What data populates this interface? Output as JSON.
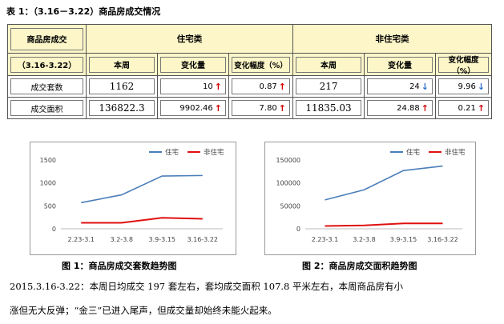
{
  "title": "表 1：（3.16－3.22）商品房成交情况",
  "table": {
    "corner_top": "商品房成交",
    "corner_bottom": "（3.16-3.22）",
    "group_residential": "住宅类",
    "group_nonresidential": "非住宅类",
    "col_week": "本周",
    "col_change": "变化量",
    "col_pct": "变化幅度（%）",
    "rows": [
      {
        "label": "成交套数",
        "res_week": "1162",
        "res_change": "10",
        "res_change_dir": "up",
        "res_pct": "0.87",
        "res_pct_dir": "up",
        "non_week": "217",
        "non_change": "24",
        "non_change_dir": "down",
        "non_pct": "9.96",
        "non_pct_dir": "down"
      },
      {
        "label": "成交面积",
        "res_week": "136822.3",
        "res_change": "9902.46",
        "res_change_dir": "up",
        "res_pct": "7.80",
        "res_pct_dir": "up",
        "non_week": "11835.03",
        "non_change": "24.88",
        "non_change_dir": "up",
        "non_pct": "0.21",
        "non_pct_dir": "up"
      }
    ]
  },
  "colors": {
    "residential": "#4a7ebb",
    "nonresidential": "#e01010",
    "arrow_up": "#d00000",
    "arrow_down": "#2a6fc9"
  },
  "captions": {
    "chart1": "图 1：商品房成交套数趋势图",
    "chart2": "图 2：商品房成交面积趋势图"
  },
  "paragraph": {
    "line1": "2015.3.16-3.22：本周日均成交 197 套左右，套均成交面积 107.8 平米左右，本周商品房有小",
    "line2": "涨但无大反弹；“金三”已进入尾声，但成交量却始终未能火起来。"
  },
  "chart_data": [
    {
      "type": "line",
      "categories": [
        "2.23-3.1",
        "3.2-3.8",
        "3.9-3.15",
        "3.16-3.22"
      ],
      "series": [
        {
          "name": "住宅",
          "values": [
            570,
            740,
            1150,
            1162
          ]
        },
        {
          "name": "非住宅",
          "values": [
            130,
            130,
            240,
            217
          ]
        }
      ],
      "ylim": [
        0,
        1500
      ],
      "yticks": [
        "0",
        "500",
        "1000",
        "1500"
      ],
      "legend": "top-right",
      "grid": false
    },
    {
      "type": "line",
      "categories": [
        "2.23-3.1",
        "3.2-3.8",
        "3.9-3.15",
        "3.16-3.22"
      ],
      "series": [
        {
          "name": "住宅",
          "values": [
            63000,
            85000,
            127000,
            136822.3
          ]
        },
        {
          "name": "非住宅",
          "values": [
            6000,
            7500,
            11800,
            11835.03
          ]
        }
      ],
      "ylim": [
        0,
        150000
      ],
      "yticks": [
        "0",
        "50000",
        "100000",
        "150000"
      ],
      "legend": "top-right",
      "grid": false
    }
  ]
}
